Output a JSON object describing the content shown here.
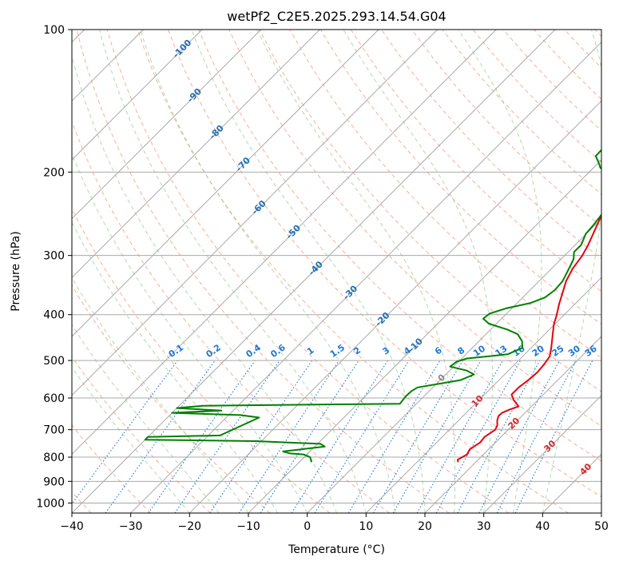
{
  "chart_data": {
    "type": "line",
    "title": "wetPf2_C2E5.2025.293.14.54.G04",
    "xlabel": "Temperature (°C)",
    "ylabel": "Pressure (hPa)",
    "xlim": [
      -40,
      50
    ],
    "ylim": [
      1050,
      100
    ],
    "x_ticks": [
      -40,
      -30,
      -20,
      -10,
      0,
      10,
      20,
      30,
      40,
      50
    ],
    "y_ticks": [
      100,
      200,
      300,
      400,
      500,
      600,
      700,
      800,
      900,
      1000
    ],
    "series": [
      {
        "name": "temperature",
        "color": "#e8000b",
        "points": [
          [
            17.0,
            820
          ],
          [
            16.5,
            810
          ],
          [
            17.2,
            790
          ],
          [
            16.8,
            770
          ],
          [
            17.4,
            745
          ],
          [
            17.2,
            725
          ],
          [
            17.8,
            700
          ],
          [
            17.4,
            685
          ],
          [
            16.6,
            670
          ],
          [
            16.0,
            655
          ],
          [
            16.1,
            645
          ],
          [
            16.8,
            635
          ],
          [
            17.8,
            625
          ],
          [
            16.8,
            615
          ],
          [
            15.8,
            605
          ],
          [
            14.6,
            590
          ],
          [
            14.6,
            570
          ],
          [
            15.0,
            550
          ],
          [
            15.2,
            530
          ],
          [
            15.0,
            510
          ],
          [
            14.6,
            490
          ],
          [
            13.4,
            470
          ],
          [
            11.7,
            445
          ],
          [
            9.9,
            420
          ],
          [
            8.7,
            400
          ],
          [
            7.3,
            380
          ],
          [
            6.0,
            360
          ],
          [
            4.6,
            340
          ],
          [
            3.6,
            320
          ],
          [
            3.0,
            300
          ],
          [
            2.2,
            285
          ],
          [
            0.8,
            265
          ],
          [
            -0.7,
            245
          ],
          [
            -1.6,
            230
          ],
          [
            -1.4,
            215
          ],
          [
            -0.1,
            205
          ],
          [
            1.5,
            195
          ],
          [
            3.4,
            185
          ],
          [
            5.4,
            175
          ],
          [
            6.5,
            165
          ],
          [
            7.3,
            155
          ],
          [
            7.8,
            145
          ],
          [
            8.4,
            135
          ],
          [
            9.3,
            125
          ],
          [
            11.1,
            117
          ],
          [
            12.5,
            110
          ],
          [
            13.4,
            105
          ],
          [
            14.2,
            100
          ]
        ]
      },
      {
        "name": "dewpoint",
        "color": "#008000",
        "points": [
          [
            -7.9,
            820
          ],
          [
            -9.0,
            800
          ],
          [
            -10.5,
            790
          ],
          [
            -13.2,
            785
          ],
          [
            -14.6,
            778
          ],
          [
            -11.8,
            770
          ],
          [
            -8.3,
            760
          ],
          [
            -9.5,
            750
          ],
          [
            -21.0,
            740
          ],
          [
            -40.0,
            735
          ],
          [
            -40.0,
            725
          ],
          [
            -28.0,
            720
          ],
          [
            -24.4,
            660
          ],
          [
            -28.0,
            652
          ],
          [
            -40.0,
            645
          ],
          [
            -32.0,
            638
          ],
          [
            -40.0,
            630
          ],
          [
            -36.0,
            623
          ],
          [
            -2.8,
            617
          ],
          [
            -3.1,
            595
          ],
          [
            -3.0,
            580
          ],
          [
            -2.6,
            570
          ],
          [
            3.5,
            550
          ],
          [
            4.8,
            535
          ],
          [
            2.9,
            525
          ],
          [
            -0.6,
            515
          ],
          [
            -0.3,
            503
          ],
          [
            0.9,
            495
          ],
          [
            4.2,
            490
          ],
          [
            7.1,
            485
          ],
          [
            8.5,
            470
          ],
          [
            7.3,
            455
          ],
          [
            5.4,
            440
          ],
          [
            2.8,
            430
          ],
          [
            -1.3,
            418
          ],
          [
            -3.1,
            408
          ],
          [
            -2.9,
            398
          ],
          [
            -1.0,
            388
          ],
          [
            2.3,
            378
          ],
          [
            3.8,
            368
          ],
          [
            4.2,
            355
          ],
          [
            4.0,
            340
          ],
          [
            3.4,
            328
          ],
          [
            2.7,
            315
          ],
          [
            2.1,
            305
          ],
          [
            1.0,
            295
          ],
          [
            1.0,
            285
          ],
          [
            -0.1,
            270
          ],
          [
            -0.3,
            258
          ],
          [
            -0.7,
            245
          ],
          [
            -1.3,
            232
          ],
          [
            -1.2,
            220
          ],
          [
            -2.5,
            212
          ],
          [
            -3.9,
            206
          ],
          [
            -6.2,
            201
          ],
          [
            -8.8,
            196
          ],
          [
            -10.0,
            191
          ],
          [
            -11.6,
            185
          ],
          [
            -11.7,
            178
          ],
          [
            -11.5,
            170
          ],
          [
            -10.8,
            160
          ],
          [
            -9.8,
            152
          ],
          [
            -8.0,
            143
          ],
          [
            -6.6,
            135
          ],
          [
            -4.6,
            124
          ],
          [
            -2.4,
            114
          ],
          [
            -0.6,
            106
          ],
          [
            0.8,
            100
          ]
        ]
      }
    ],
    "isotherm_labels": [
      "-100",
      "-90",
      "-80",
      "-70",
      "-60",
      "-50",
      "-40",
      "-30",
      "-20",
      "-10",
      "0",
      "10",
      "20",
      "30",
      "40"
    ],
    "mixing_ratio_labels": [
      "0.1",
      "0.2",
      "0.4",
      "0.6",
      "1",
      "1.5",
      "2",
      "3",
      "4",
      "6",
      "8",
      "10",
      "13",
      "16",
      "20",
      "25",
      "30",
      "36"
    ],
    "grid": true
  },
  "colors": {
    "isotherm": "#a9a9a9",
    "dry_adiabat": "#f59a7f",
    "moist_adiabat": "#8fca8c",
    "mixing_ratio": "#1f77d4",
    "iso_label_cold": "#1f6fb2",
    "iso_label_warm": "#d62728"
  }
}
